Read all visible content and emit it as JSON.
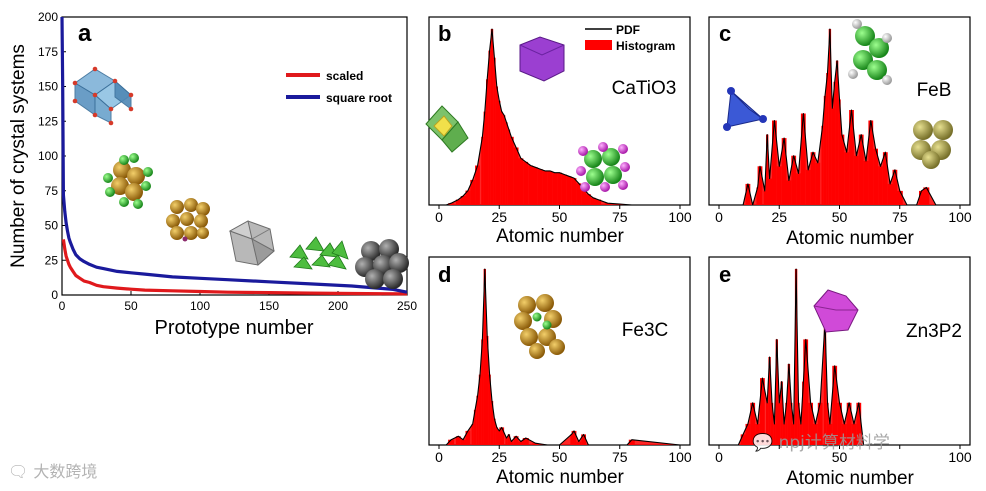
{
  "chart_data": [
    {
      "panel": "a",
      "type": "line",
      "xlabel": "Prototype number",
      "ylabel": "Number of crystal systems",
      "xlim": [
        0,
        250
      ],
      "ylim": [
        0,
        200
      ],
      "xticks": [
        "0",
        "50",
        "100",
        "150",
        "200",
        "250"
      ],
      "yticks": [
        "0",
        "25",
        "50",
        "75",
        "100",
        "125",
        "150",
        "175",
        "200"
      ],
      "legend_position": "top-right",
      "series": [
        {
          "name": "scaled",
          "color": "#e0191c",
          "x": [
            1,
            2,
            3,
            4,
            5,
            6,
            8,
            10,
            13,
            16,
            20,
            25,
            30,
            40,
            50,
            60,
            80,
            100,
            120,
            150,
            180,
            210,
            250
          ],
          "y": [
            40,
            33,
            28,
            25,
            22,
            20,
            17,
            14,
            12,
            10,
            9,
            7,
            6,
            5,
            4.2,
            3.5,
            3,
            2.5,
            2,
            1.7,
            1.4,
            1.1,
            0.8
          ]
        },
        {
          "name": "square root",
          "color": "#1a1a9c",
          "x": [
            0,
            0.5,
            1,
            2,
            3,
            4,
            5,
            6,
            8,
            10,
            13,
            16,
            20,
            25,
            30,
            40,
            50,
            60,
            80,
            100,
            120,
            150,
            180,
            210,
            240,
            250
          ],
          "y": [
            200,
            150,
            72,
            60,
            52,
            46,
            41,
            38,
            33,
            29,
            26,
            24,
            22,
            20,
            19,
            17,
            16,
            15,
            13,
            12,
            11,
            9.5,
            8,
            6.5,
            4,
            2
          ]
        }
      ]
    },
    {
      "panel": "b",
      "type": "area",
      "annotation": "CaTiO3",
      "xlabel": "Atomic number",
      "xlim": [
        0,
        100
      ],
      "xticks": [
        "0",
        "25",
        "50",
        "75",
        "100"
      ],
      "legend": [
        "PDF",
        "Histogram"
      ],
      "legend_position": "top-right",
      "x": [
        3,
        5,
        8,
        10,
        12,
        14,
        16,
        18,
        19,
        20,
        21,
        22,
        23,
        24,
        25,
        26,
        27,
        28,
        29,
        30,
        32,
        34,
        36,
        38,
        40,
        42,
        44,
        46,
        48,
        50,
        52,
        54,
        56,
        58,
        60,
        62,
        64,
        66,
        70,
        75,
        80,
        85,
        100
      ],
      "y": [
        0,
        1,
        3,
        5,
        8,
        14,
        22,
        38,
        52,
        70,
        86,
        98,
        82,
        66,
        58,
        52,
        50,
        46,
        42,
        38,
        32,
        26,
        24,
        22,
        21,
        20,
        19,
        19,
        18,
        18,
        17,
        16,
        15,
        12,
        9,
        6,
        4,
        3,
        1,
        0.5,
        0,
        0,
        0
      ]
    },
    {
      "panel": "c",
      "type": "area",
      "annotation": "FeB",
      "xlabel": "Atomic number",
      "xlim": [
        0,
        100
      ],
      "xticks": [
        "0",
        "25",
        "50",
        "75",
        "100"
      ],
      "x": [
        0,
        10,
        12,
        14,
        16,
        17,
        19,
        20,
        21,
        23,
        25,
        27,
        29,
        31,
        33,
        35,
        37,
        39,
        41,
        43,
        44,
        45,
        46,
        47,
        48,
        49,
        50,
        51,
        53,
        55,
        57,
        59,
        61,
        63,
        65,
        67,
        69,
        71,
        73,
        75,
        78,
        82,
        84,
        86,
        90,
        100
      ],
      "y": [
        0,
        0,
        12,
        0,
        10,
        22,
        8,
        40,
        15,
        48,
        22,
        38,
        14,
        28,
        18,
        52,
        20,
        30,
        24,
        45,
        62,
        75,
        100,
        55,
        70,
        82,
        60,
        40,
        30,
        54,
        28,
        40,
        25,
        48,
        32,
        22,
        30,
        12,
        20,
        8,
        0,
        0,
        8,
        10,
        0,
        0
      ]
    },
    {
      "panel": "d",
      "type": "area",
      "annotation": "Fe3C",
      "xlabel": "Atomic number",
      "xlim": [
        0,
        100
      ],
      "xticks": [
        "0",
        "25",
        "50",
        "75",
        "100"
      ],
      "x": [
        0,
        3,
        5,
        8,
        10,
        12,
        14,
        15,
        16,
        17,
        18,
        19,
        20,
        21,
        22,
        23,
        24,
        25,
        26,
        28,
        29,
        30,
        32,
        34,
        36,
        40,
        45,
        50,
        55,
        56,
        58,
        60,
        62,
        70,
        78,
        80,
        100
      ],
      "y": [
        0,
        0,
        3,
        5,
        3,
        8,
        12,
        20,
        28,
        40,
        60,
        100,
        62,
        40,
        25,
        15,
        10,
        8,
        10,
        4,
        6,
        2,
        5,
        2,
        4,
        1,
        0,
        0,
        6,
        8,
        2,
        6,
        0,
        0,
        0,
        3,
        0
      ]
    },
    {
      "panel": "e",
      "type": "area",
      "annotation": "Zn3P2",
      "xlabel": "Atomic number",
      "xlim": [
        0,
        100
      ],
      "xticks": [
        "0",
        "",
        "50",
        "",
        "100"
      ],
      "x": [
        0,
        8,
        10,
        12,
        14,
        16,
        18,
        20,
        21,
        22,
        23,
        24,
        25,
        26,
        27,
        28,
        29,
        30,
        31,
        32,
        33,
        34,
        35,
        36,
        38,
        40,
        42,
        44,
        45,
        46,
        48,
        50,
        52,
        54,
        56,
        58,
        60,
        62,
        64,
        100
      ],
      "y": [
        0,
        0,
        6,
        12,
        24,
        12,
        38,
        24,
        50,
        24,
        12,
        60,
        24,
        36,
        12,
        24,
        46,
        24,
        12,
        100,
        24,
        12,
        36,
        60,
        24,
        12,
        24,
        70,
        24,
        12,
        45,
        24,
        12,
        24,
        12,
        24,
        0,
        0,
        0,
        0
      ]
    }
  ]
}
